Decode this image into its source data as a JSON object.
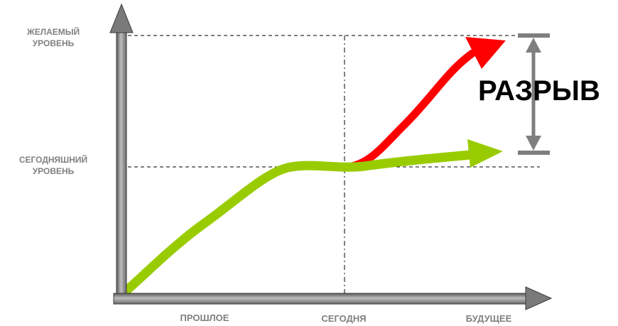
{
  "y_axis_labels": {
    "desired_level": [
      "ЖЕЛАЕМЫЙ",
      "УРОВЕНЬ"
    ],
    "current_level": [
      "СЕГОДНЯШНИЙ",
      "УРОВЕНЬ"
    ]
  },
  "x_axis_labels": {
    "past": "ПРОШЛОЕ",
    "today": "СЕГОДНЯ",
    "future": "БУДУЩЕЕ"
  },
  "gap_label": "РАЗРЫВ",
  "colors": {
    "axis": "#808080",
    "axis_dark": "#3a3a3a",
    "current_trend": "#99cc00",
    "desired_trend": "#ff0000",
    "gap_marker": "#7f7f7f",
    "text_muted": "#808080",
    "text_strong": "#000000"
  }
}
